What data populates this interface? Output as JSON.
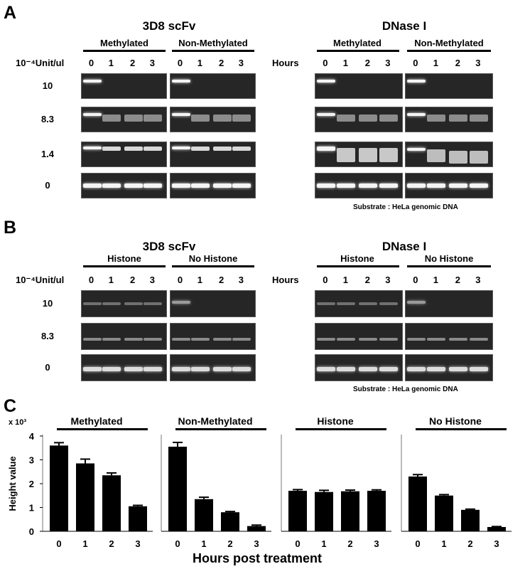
{
  "panels": {
    "A": {
      "letter": "A",
      "left_title": "3D8 scFv",
      "right_title": "DNase I",
      "group_left": "Methylated",
      "group_right": "Non-Methylated",
      "unit_label": "10⁻⁴Unit/ul",
      "hours_label": "Hours",
      "lanes": [
        "0",
        "1",
        "2",
        "3"
      ],
      "rows": [
        "10",
        "8.3",
        "1.4",
        "0"
      ],
      "substrate": "Substrate : HeLa genomic DNA"
    },
    "B": {
      "letter": "B",
      "left_title": "3D8 scFv",
      "right_title": "DNase I",
      "group_left": "Histone",
      "group_right": "No Histone",
      "unit_label": "10⁻⁴Unit/ul",
      "hours_label": "Hours",
      "lanes": [
        "0",
        "1",
        "2",
        "3"
      ],
      "rows": [
        "10",
        "8.3",
        "0"
      ],
      "substrate": "Substrate : HeLa genomic DNA"
    },
    "C": {
      "letter": "C"
    }
  },
  "chart_data": {
    "type": "bar",
    "y_multiplier": "x 10³",
    "ylabel": "Height value",
    "xlabel": "Hours post treatment",
    "ylim": [
      0,
      4
    ],
    "yticks": [
      "0",
      "1",
      "2",
      "3",
      "4"
    ],
    "categories": [
      "0",
      "1",
      "2",
      "3"
    ],
    "panels": [
      {
        "title": "Methylated",
        "values": [
          3.6,
          2.85,
          2.35,
          1.05
        ],
        "errors": [
          0.12,
          0.18,
          0.1,
          0.04
        ]
      },
      {
        "title": "Non-Methylated",
        "values": [
          3.55,
          1.35,
          0.8,
          0.22
        ],
        "errors": [
          0.18,
          0.08,
          0.03,
          0.04
        ]
      },
      {
        "title": "Histone",
        "values": [
          1.7,
          1.65,
          1.68,
          1.7
        ],
        "errors": [
          0.05,
          0.07,
          0.05,
          0.04
        ]
      },
      {
        "title": "No Histone",
        "values": [
          2.3,
          1.5,
          0.9,
          0.18
        ],
        "errors": [
          0.08,
          0.04,
          0.03,
          0.02
        ]
      }
    ],
    "bar_color": "#000000"
  }
}
